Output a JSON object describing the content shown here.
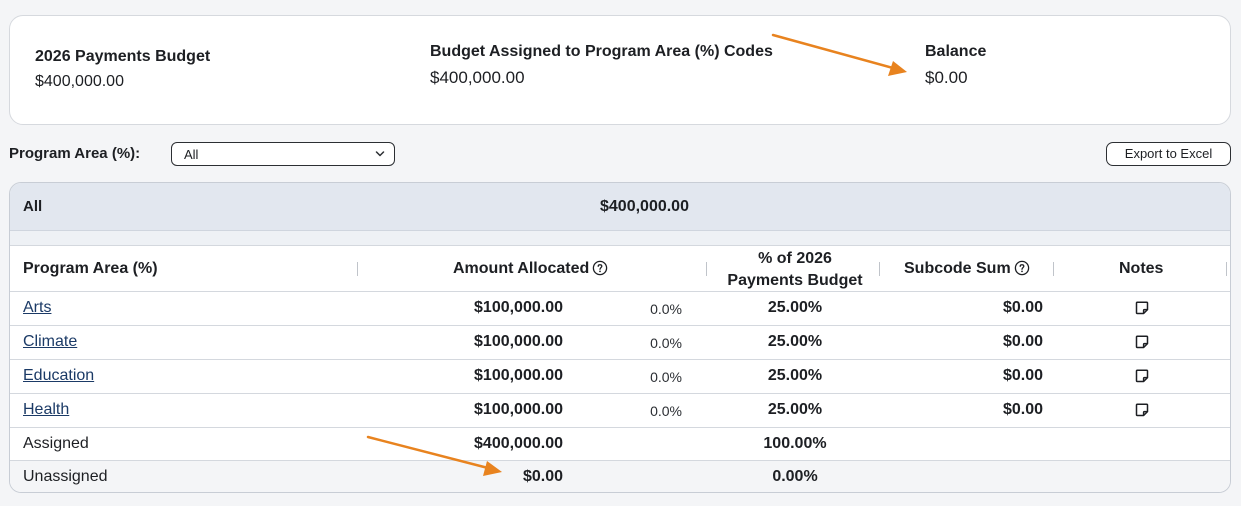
{
  "summary": {
    "budget_label": "2026 Payments Budget",
    "budget_value": "$400,000.00",
    "assigned_label": "Budget Assigned to Program Area (%) Codes",
    "assigned_value": "$400,000.00",
    "balance_label": "Balance",
    "balance_value": "$0.00"
  },
  "filter": {
    "label": "Program Area (%):",
    "selected": "All",
    "export_label": "Export to Excel"
  },
  "group": {
    "name": "All",
    "total": "$400,000.00"
  },
  "table": {
    "headers": {
      "program_area": "Program Area (%)",
      "amount_allocated": "Amount Allocated",
      "pct_budget_line1": "% of 2026",
      "pct_budget_line2": "Payments Budget",
      "subcode_sum": "Subcode Sum",
      "notes": "Notes"
    },
    "rows": [
      {
        "name": "Arts",
        "amount": "$100,000.00",
        "small_pct": "0.0%",
        "pct_budget": "25.00%",
        "subcode_sum": "$0.00"
      },
      {
        "name": "Climate",
        "amount": "$100,000.00",
        "small_pct": "0.0%",
        "pct_budget": "25.00%",
        "subcode_sum": "$0.00"
      },
      {
        "name": "Education",
        "amount": "$100,000.00",
        "small_pct": "0.0%",
        "pct_budget": "25.00%",
        "subcode_sum": "$0.00"
      },
      {
        "name": "Health",
        "amount": "$100,000.00",
        "small_pct": "0.0%",
        "pct_budget": "25.00%",
        "subcode_sum": "$0.00"
      }
    ],
    "assigned": {
      "label": "Assigned",
      "amount": "$400,000.00",
      "pct": "100.00%"
    },
    "unassigned": {
      "label": "Unassigned",
      "amount": "$0.00",
      "pct": "0.00%"
    }
  },
  "colors": {
    "annotation_arrow": "#e8831f",
    "link": "#1b3a66",
    "group_header_bg": "#e2e7ef"
  },
  "icons": {
    "help": "question-circle-icon",
    "notes": "sticky-note-icon",
    "select": "chevron-down-icon"
  }
}
